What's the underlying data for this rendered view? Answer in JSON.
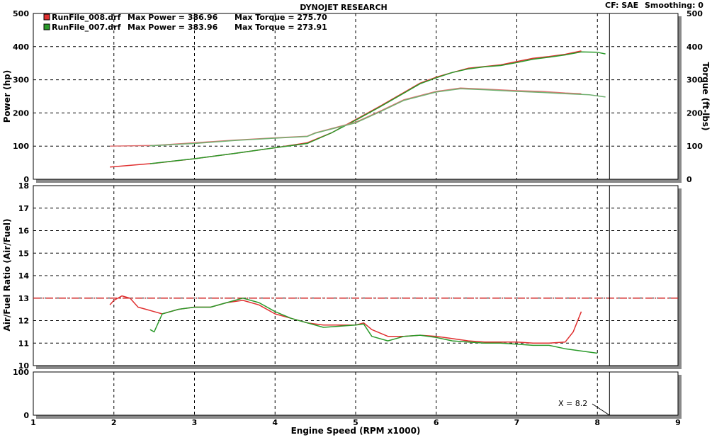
{
  "header": {
    "title": "DYNOJET RESEARCH",
    "cf_label": "CF: SAE",
    "smoothing_label": "Smoothing: 0"
  },
  "legend": [
    {
      "file": "RunFile_008.drf",
      "max_power": "Max Power = 386.96",
      "max_torque": "Max Torque = 275.70",
      "color": "#e03030"
    },
    {
      "file": "RunFile_007.drf",
      "max_power": "Max Power = 383.96",
      "max_torque": "Max Torque = 273.91",
      "color": "#2a9a2a"
    }
  ],
  "cursor": {
    "label": "X = 8.2",
    "rpm": 8.15
  },
  "chart_data": [
    {
      "type": "line",
      "name": "power-torque",
      "ylabel": "Power (hp)",
      "y2label": "Torque (ft-lbs)",
      "xlim": [
        1,
        9
      ],
      "ylim": [
        0,
        500
      ],
      "y2lim": [
        0,
        500
      ],
      "yticks": [
        0,
        100,
        200,
        300,
        400,
        500
      ],
      "grid": true,
      "series": [
        {
          "name": "RunFile_008.drf Power",
          "color": "#e03030",
          "x": [
            1.95,
            2.5,
            3.0,
            3.5,
            4.0,
            4.4,
            4.7,
            5.0,
            5.3,
            5.6,
            5.8,
            6.0,
            6.2,
            6.4,
            6.6,
            6.8,
            7.0,
            7.2,
            7.4,
            7.6,
            7.8
          ],
          "y": [
            37,
            48,
            62,
            78,
            95,
            110,
            140,
            180,
            220,
            262,
            290,
            308,
            322,
            335,
            340,
            345,
            355,
            365,
            370,
            377,
            387
          ]
        },
        {
          "name": "RunFile_007.drf Power",
          "color": "#2a9a2a",
          "x": [
            2.45,
            3.0,
            3.5,
            4.0,
            4.4,
            4.7,
            5.0,
            5.3,
            5.6,
            5.8,
            6.0,
            6.2,
            6.4,
            6.6,
            6.8,
            7.0,
            7.2,
            7.4,
            7.6,
            7.8,
            8.0,
            8.1
          ],
          "y": [
            47,
            62,
            78,
            95,
            108,
            140,
            178,
            218,
            260,
            288,
            306,
            322,
            333,
            339,
            343,
            352,
            362,
            368,
            375,
            384,
            383,
            378
          ]
        },
        {
          "name": "RunFile_008.drf Torque",
          "color": "#e07070",
          "x": [
            1.95,
            2.5,
            3.0,
            3.5,
            4.0,
            4.4,
            4.5,
            5.0,
            5.3,
            5.6,
            6.0,
            6.3,
            6.6,
            7.0,
            7.3,
            7.6,
            7.8
          ],
          "y": [
            100,
            102,
            110,
            118,
            125,
            130,
            140,
            172,
            205,
            240,
            265,
            275,
            272,
            267,
            265,
            260,
            258
          ]
        },
        {
          "name": "RunFile_007.drf Torque",
          "color": "#70b070",
          "x": [
            2.45,
            3.0,
            3.5,
            4.0,
            4.4,
            4.5,
            5.0,
            5.3,
            5.6,
            6.0,
            6.3,
            6.6,
            7.0,
            7.3,
            7.6,
            7.9,
            8.1
          ],
          "y": [
            101,
            108,
            117,
            124,
            129,
            139,
            170,
            203,
            238,
            263,
            273,
            270,
            265,
            262,
            258,
            255,
            248
          ]
        }
      ]
    },
    {
      "type": "line",
      "name": "air-fuel",
      "ylabel": "Air/Fuel Ratio (Air/Fuel)",
      "xlim": [
        1,
        9
      ],
      "ylim": [
        10,
        18
      ],
      "yticks": [
        10,
        11,
        12,
        13,
        14,
        15,
        16,
        17,
        18
      ],
      "reference_line": 13,
      "grid": true,
      "series": [
        {
          "name": "RunFile_008.drf AFR",
          "color": "#e03030",
          "x": [
            1.95,
            2.0,
            2.1,
            2.2,
            2.3,
            2.4,
            2.5,
            2.6,
            2.8,
            3.0,
            3.2,
            3.4,
            3.6,
            3.8,
            4.0,
            4.2,
            4.4,
            4.6,
            4.8,
            5.0,
            5.1,
            5.2,
            5.4,
            5.6,
            5.8,
            6.0,
            6.2,
            6.4,
            6.6,
            6.8,
            7.0,
            7.2,
            7.4,
            7.6,
            7.7,
            7.8
          ],
          "y": [
            12.7,
            12.9,
            13.1,
            13.0,
            12.6,
            12.5,
            12.4,
            12.3,
            12.5,
            12.6,
            12.6,
            12.8,
            12.9,
            12.7,
            12.3,
            12.1,
            11.9,
            11.8,
            11.8,
            11.8,
            11.9,
            11.6,
            11.3,
            11.3,
            11.35,
            11.3,
            11.2,
            11.1,
            11.05,
            11.05,
            11.05,
            11.0,
            11.0,
            11.05,
            11.5,
            12.4
          ]
        },
        {
          "name": "RunFile_007.drf AFR",
          "color": "#2a9a2a",
          "x": [
            2.45,
            2.5,
            2.6,
            2.7,
            2.8,
            3.0,
            3.2,
            3.4,
            3.6,
            3.8,
            4.0,
            4.2,
            4.4,
            4.6,
            4.8,
            5.0,
            5.1,
            5.2,
            5.4,
            5.6,
            5.8,
            6.0,
            6.2,
            6.4,
            6.6,
            6.8,
            7.0,
            7.2,
            7.4,
            7.6,
            7.8,
            8.0
          ],
          "y": [
            11.6,
            11.5,
            12.3,
            12.4,
            12.5,
            12.6,
            12.6,
            12.8,
            13.0,
            12.8,
            12.4,
            12.1,
            11.9,
            11.7,
            11.75,
            11.8,
            11.85,
            11.3,
            11.1,
            11.3,
            11.35,
            11.25,
            11.1,
            11.05,
            11.0,
            11.0,
            10.95,
            10.9,
            10.9,
            10.75,
            10.65,
            10.55
          ]
        }
      ]
    },
    {
      "type": "line",
      "name": "auxiliary",
      "xlabel": "Engine Speed (RPM x1000)",
      "xlim": [
        1,
        9
      ],
      "ylim": [
        0,
        100
      ],
      "yticks": [
        0,
        100
      ],
      "xticks": [
        1,
        2,
        3,
        4,
        5,
        6,
        7,
        8,
        9
      ],
      "grid": true,
      "series": []
    }
  ]
}
